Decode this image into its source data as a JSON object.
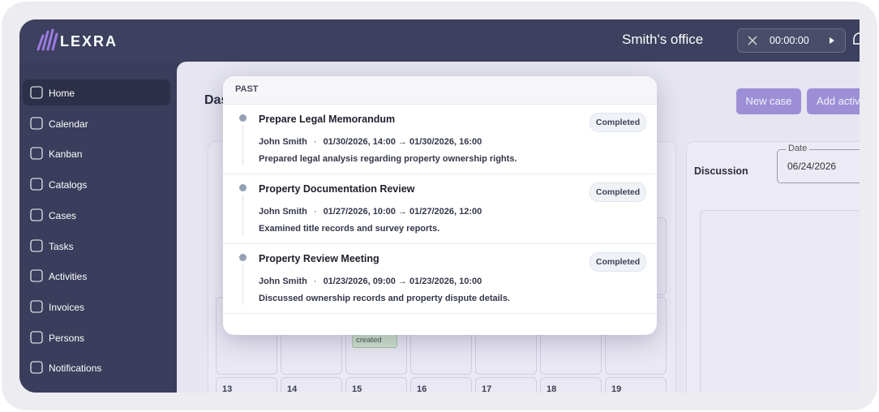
{
  "header": {
    "brand": "LEXRA",
    "office": "Smith's office",
    "timer": "00:00:00"
  },
  "sidebar": {
    "items": [
      "Home",
      "Calendar",
      "Kanban",
      "Catalogs",
      "Cases",
      "Tasks",
      "Activities",
      "Invoices",
      "Persons",
      "Notifications"
    ]
  },
  "main": {
    "title": "Dashboard",
    "buttons": [
      "New case",
      "Add activity"
    ],
    "discussion": {
      "title": "Discussion",
      "date_label": "Date",
      "date_value": "06/24/2026"
    },
    "calendar": {
      "tag": "created",
      "days": [
        "13",
        "14",
        "15",
        "16",
        "17",
        "18",
        "19"
      ]
    }
  },
  "popup": {
    "heading": "PAST",
    "meta_separator": "·",
    "items": [
      {
        "title": "Prepare Legal Memorandum",
        "status": "Completed",
        "person": "John Smith",
        "period": "01/30/2026, 14:00 → 01/30/2026, 16:00",
        "description": "Prepared legal analysis regarding property ownership rights."
      },
      {
        "title": "Property Documentation Review",
        "status": "Completed",
        "person": "John Smith",
        "period": "01/27/2026, 10:00 → 01/27/2026, 12:00",
        "description": "Examined title records and survey reports."
      },
      {
        "title": "Property Review Meeting",
        "status": "Completed",
        "person": "John Smith",
        "period": "01/23/2026, 09:00 → 01/23/2026, 10:00",
        "description": "Discussed ownership records and property dispute details."
      }
    ]
  }
}
